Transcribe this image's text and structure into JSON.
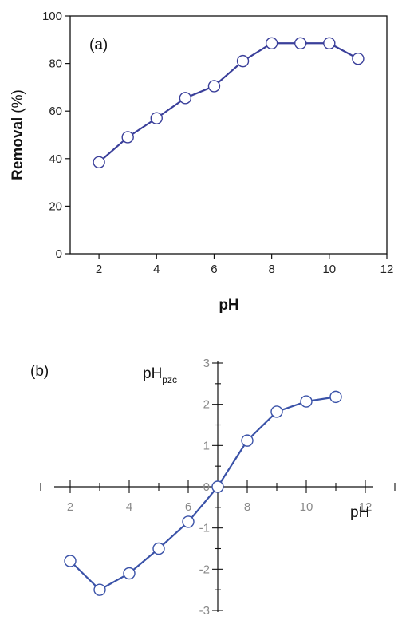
{
  "chart_data": [
    {
      "type": "line",
      "panel_label": "(a)",
      "xlabel": "pH",
      "ylabel_bold": "Removal",
      "ylabel_unit": "(%)",
      "xlim": [
        1,
        12
      ],
      "ylim": [
        0,
        100
      ],
      "x_ticks": [
        2,
        4,
        6,
        8,
        10,
        12
      ],
      "y_ticks": [
        0,
        20,
        40,
        60,
        80,
        100
      ],
      "grid": false,
      "line_color": "#3a3f9a",
      "marker": "open-circle",
      "series": [
        {
          "x": [
            2,
            3,
            4,
            5,
            6,
            7,
            8,
            9,
            10,
            11
          ],
          "y": [
            38.5,
            49,
            57,
            65.5,
            70.5,
            81,
            88.5,
            88.5,
            88.5,
            82
          ]
        }
      ]
    },
    {
      "type": "line",
      "panel_label": "(b)",
      "xlabel": "pH",
      "ylabel_main": "pH",
      "ylabel_sub": "pzc",
      "xlim": [
        1,
        13
      ],
      "ylim": [
        -3,
        3
      ],
      "x_ticks": [
        2,
        4,
        6,
        8,
        10,
        12
      ],
      "y_ticks": [
        -3,
        -2,
        -1,
        0,
        1,
        2,
        3
      ],
      "axes_cross_at": [
        7,
        0
      ],
      "grid": false,
      "line_color": "#3a52a8",
      "marker": "open-circle",
      "series": [
        {
          "x": [
            2,
            3,
            4,
            5,
            6,
            7,
            8,
            9,
            10,
            11
          ],
          "y": [
            -1.8,
            -2.5,
            -2.1,
            -1.5,
            -0.85,
            0,
            1.12,
            1.82,
            2.07,
            2.18
          ]
        }
      ]
    }
  ]
}
